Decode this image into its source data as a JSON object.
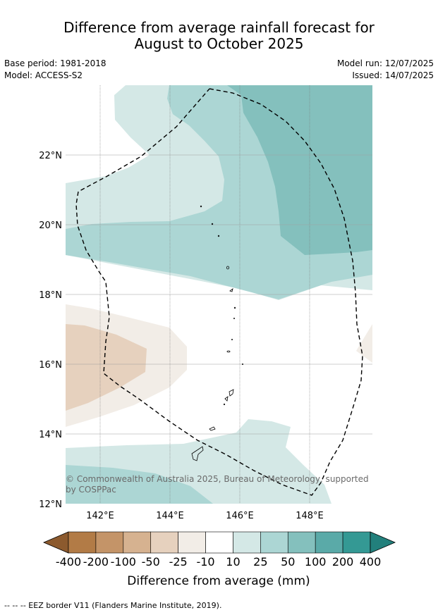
{
  "title_line1": "Difference from average rainfall forecast for",
  "title_line2": "August to October 2025",
  "base_period": "Base period: 1981-2018",
  "model": "Model: ACCESS-S2",
  "model_run": "Model run: 12/07/2025",
  "issued": "Issued: 14/07/2025",
  "copyright_line1": "© Commonwealth of Australia 2025, Bureau of Meteorology, supported",
  "copyright_line2": "by COSPPac",
  "longitude_ticks": [
    "142°E",
    "144°E",
    "146°E",
    "148°E"
  ],
  "latitude_ticks": [
    "22°N",
    "20°N",
    "18°N",
    "16°N",
    "14°N",
    "12°N"
  ],
  "colorbar": {
    "title": "Difference from average (mm)",
    "labels": [
      "-400",
      "-200",
      "-100",
      "-50",
      "-25",
      "-10",
      "10",
      "25",
      "50",
      "100",
      "200",
      "400"
    ],
    "colors": [
      "#8c5a2e",
      "#b27b46",
      "#c49468",
      "#d6b290",
      "#e6d1be",
      "#f2ede7",
      "#ffffff",
      "#d4e8e6",
      "#acd6d4",
      "#84c0bd",
      "#5aaaa8",
      "#349994",
      "#22807c"
    ]
  },
  "footer": "-- -- -- EEZ border V11 (Flanders Marine Institute, 2019)."
}
